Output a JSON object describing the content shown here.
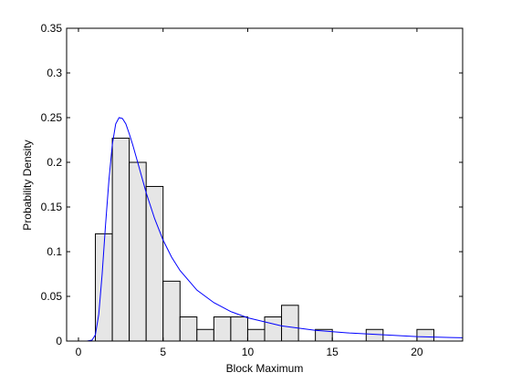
{
  "chart_data": {
    "type": "bar",
    "title": "",
    "xlabel": "Block Maximum",
    "ylabel": "Probability Density",
    "xlim": [
      -0.7,
      22.7
    ],
    "ylim": [
      0,
      0.35
    ],
    "xticks": [
      0,
      5,
      10,
      15,
      20
    ],
    "xtick_labels": [
      "0",
      "5",
      "10",
      "15",
      "20"
    ],
    "yticks": [
      0,
      0.05,
      0.1,
      0.15,
      0.2,
      0.25,
      0.3,
      0.35
    ],
    "ytick_labels": [
      "0",
      "0.05",
      "0.1",
      "0.15",
      "0.2",
      "0.25",
      "0.3",
      "0.35"
    ],
    "grid": false,
    "histogram": {
      "bin_width": 1,
      "bin_starts": [
        1,
        2,
        3,
        4,
        5,
        6,
        7,
        8,
        9,
        10,
        11,
        12,
        13,
        14,
        15,
        16,
        17,
        18,
        19,
        20,
        21
      ],
      "values": [
        0.12,
        0.227,
        0.2,
        0.173,
        0.067,
        0.027,
        0.013,
        0.027,
        0.027,
        0.013,
        0.027,
        0.04,
        0,
        0.013,
        0,
        0,
        0.013,
        0,
        0,
        0.013,
        0
      ],
      "fill_color": "#e6e6e6",
      "edge_color": "#000000"
    },
    "series": [
      {
        "type": "line",
        "color": "#0000ff",
        "x": [
          0,
          0.5,
          0.8,
          1.0,
          1.2,
          1.4,
          1.6,
          1.8,
          2.0,
          2.2,
          2.4,
          2.6,
          2.8,
          3.0,
          3.2,
          3.5,
          4.0,
          4.5,
          5.0,
          5.5,
          6.0,
          7.0,
          8.0,
          9.0,
          10.0,
          12.0,
          14.0,
          16.0,
          18.0,
          20.0,
          22.0,
          22.7
        ],
        "y": [
          0,
          0,
          0.001,
          0.007,
          0.03,
          0.075,
          0.13,
          0.18,
          0.22,
          0.243,
          0.25,
          0.249,
          0.243,
          0.232,
          0.22,
          0.2,
          0.166,
          0.137,
          0.113,
          0.094,
          0.079,
          0.057,
          0.043,
          0.033,
          0.026,
          0.017,
          0.012,
          0.009,
          0.007,
          0.005,
          0.004,
          0.0037
        ]
      }
    ]
  }
}
